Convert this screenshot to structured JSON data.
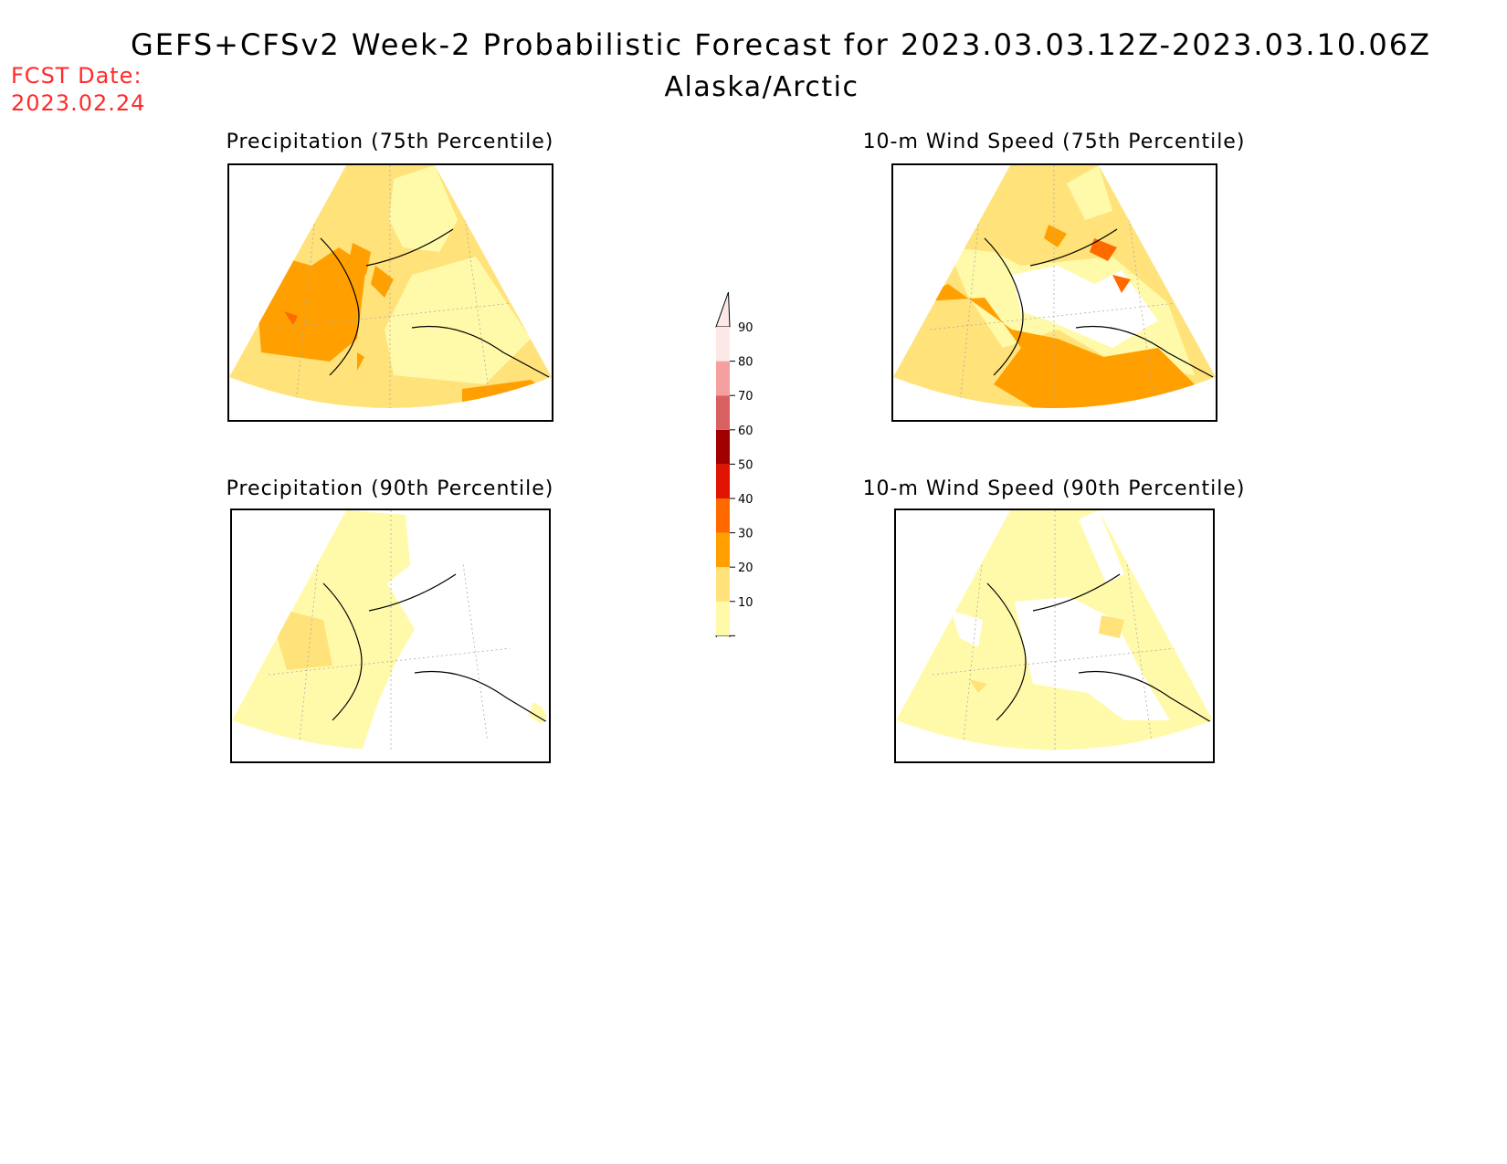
{
  "header": {
    "title": "GEFS+CFSv2 Week-2 Probabilistic Forecast for 2023.03.03.12Z-2023.03.10.06Z",
    "region": "Alaska/Arctic",
    "fcst_date_label": "FCST Date:",
    "fcst_date_value": "2023.02.24",
    "fcst_color": "#ff2a2a"
  },
  "panels": {
    "precip75": {
      "title": "Precipitation (75th Percentile)"
    },
    "wind75": {
      "title": "10-m Wind Speed (75th Percentile)"
    },
    "precip90": {
      "title": "Precipitation (90th Percentile)"
    },
    "wind90": {
      "title": "10-m Wind Speed (90th Percentile)"
    }
  },
  "colorbar": {
    "levels": [
      "10",
      "20",
      "30",
      "40",
      "50",
      "60",
      "70",
      "80",
      "90"
    ],
    "colors": [
      "#fffaaa",
      "#ffe27a",
      "#ffa000",
      "#ff6a00",
      "#e01400",
      "#a00000",
      "#d86060",
      "#f4a0a0",
      "#fde8e8"
    ]
  }
}
